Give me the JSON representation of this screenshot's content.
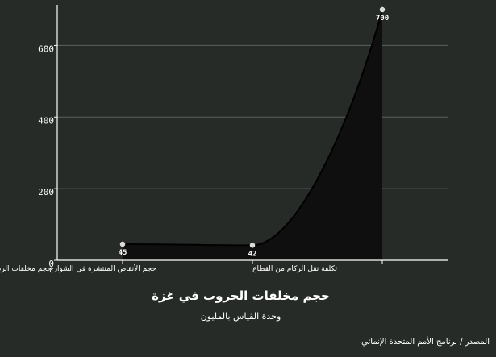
{
  "chart_data": {
    "type": "area",
    "title": "حجم مخلفات الحروب في غزة",
    "subtitle": "وحدة القياس بالمليون",
    "source": "المصدر / برنامج الأمم المتحدة الإنمائي",
    "categories": [
      "حجم مخلفات الردم المختلطة بالمواد الخطيرة",
      "حجم الأنقاض المنتشرة في الشوارع",
      "تكلفة نقل الركام من القطاع"
    ],
    "values": [
      45,
      42,
      700
    ],
    "data_labels": [
      "45",
      "42",
      "700"
    ],
    "y_ticks": [
      0,
      200,
      400,
      600
    ],
    "y_tick_labels": [
      "0",
      "200",
      "400",
      "600"
    ],
    "ylim": [
      0,
      700
    ],
    "grid": true,
    "colors": {
      "background": "#262b27",
      "fill": "#0e0f0e",
      "line": "#000000",
      "grid": "#5b605c",
      "axis": "#ffffff",
      "point": "#d9d9d9"
    }
  }
}
